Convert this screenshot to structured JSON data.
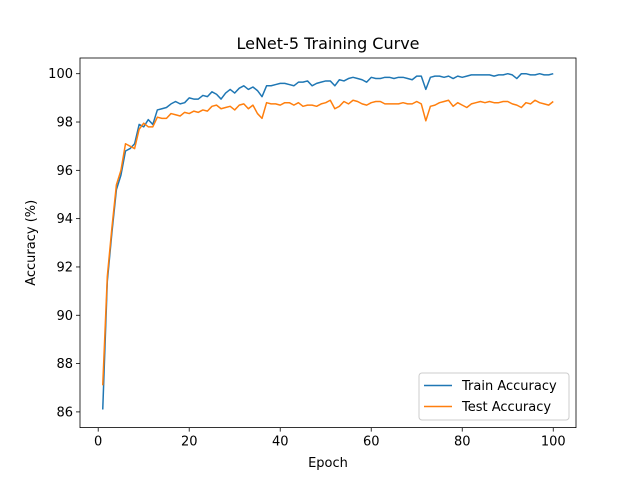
{
  "chart_data": {
    "type": "line",
    "title": "LeNet-5 Training Curve",
    "xlabel": "Epoch",
    "ylabel": "Accuracy (%)",
    "xlim": [
      -4,
      105
    ],
    "ylim": [
      85.35,
      100.65
    ],
    "x_ticks": [
      0,
      20,
      40,
      60,
      80,
      100
    ],
    "y_ticks": [
      86,
      88,
      90,
      92,
      94,
      96,
      98,
      100
    ],
    "grid": false,
    "legend_position": "lower-right",
    "x": [
      1,
      2,
      3,
      4,
      5,
      6,
      7,
      8,
      9,
      10,
      11,
      12,
      13,
      14,
      15,
      16,
      17,
      18,
      19,
      20,
      21,
      22,
      23,
      24,
      25,
      26,
      27,
      28,
      29,
      30,
      31,
      32,
      33,
      34,
      35,
      36,
      37,
      38,
      39,
      40,
      41,
      42,
      43,
      44,
      45,
      46,
      47,
      48,
      49,
      50,
      51,
      52,
      53,
      54,
      55,
      56,
      57,
      58,
      59,
      60,
      61,
      62,
      63,
      64,
      65,
      66,
      67,
      68,
      69,
      70,
      71,
      72,
      73,
      74,
      75,
      76,
      77,
      78,
      79,
      80,
      81,
      82,
      83,
      84,
      85,
      86,
      87,
      88,
      89,
      90,
      91,
      92,
      93,
      94,
      95,
      96,
      97,
      98,
      99,
      100
    ],
    "series": [
      {
        "name": "Train Accuracy",
        "color": "#1f77b4",
        "values": [
          86.1,
          91.4,
          93.4,
          95.2,
          95.8,
          96.8,
          96.9,
          97.1,
          97.9,
          97.8,
          98.1,
          97.9,
          98.5,
          98.55,
          98.6,
          98.75,
          98.85,
          98.75,
          98.8,
          99.0,
          98.95,
          98.95,
          99.1,
          99.05,
          99.25,
          99.15,
          98.95,
          99.2,
          99.35,
          99.2,
          99.4,
          99.5,
          99.35,
          99.45,
          99.3,
          99.05,
          99.5,
          99.5,
          99.55,
          99.6,
          99.6,
          99.55,
          99.5,
          99.65,
          99.65,
          99.7,
          99.5,
          99.6,
          99.65,
          99.7,
          99.7,
          99.5,
          99.75,
          99.7,
          99.8,
          99.85,
          99.8,
          99.75,
          99.65,
          99.85,
          99.8,
          99.8,
          99.85,
          99.85,
          99.8,
          99.85,
          99.85,
          99.8,
          99.75,
          99.9,
          99.9,
          99.35,
          99.85,
          99.9,
          99.9,
          99.85,
          99.9,
          99.8,
          99.9,
          99.85,
          99.9,
          99.95,
          99.95,
          99.95,
          99.95,
          99.95,
          99.9,
          99.95,
          99.95,
          100.0,
          99.95,
          99.8,
          100.0,
          100.0,
          99.95,
          99.95,
          100.0,
          99.95,
          99.95,
          100.0
        ]
      },
      {
        "name": "Test Accuracy",
        "color": "#ff7f0e",
        "values": [
          87.1,
          91.6,
          93.6,
          95.4,
          96.0,
          97.1,
          97.0,
          96.9,
          97.7,
          97.95,
          97.8,
          97.8,
          98.2,
          98.15,
          98.15,
          98.35,
          98.3,
          98.25,
          98.4,
          98.35,
          98.45,
          98.4,
          98.5,
          98.45,
          98.65,
          98.7,
          98.55,
          98.6,
          98.65,
          98.5,
          98.7,
          98.75,
          98.55,
          98.7,
          98.35,
          98.15,
          98.8,
          98.75,
          98.75,
          98.7,
          98.8,
          98.8,
          98.7,
          98.8,
          98.65,
          98.7,
          98.7,
          98.65,
          98.75,
          98.8,
          98.9,
          98.55,
          98.65,
          98.85,
          98.75,
          98.9,
          98.85,
          98.75,
          98.7,
          98.8,
          98.85,
          98.85,
          98.75,
          98.75,
          98.75,
          98.75,
          98.8,
          98.75,
          98.75,
          98.85,
          98.75,
          98.05,
          98.65,
          98.7,
          98.8,
          98.85,
          98.9,
          98.65,
          98.8,
          98.7,
          98.6,
          98.75,
          98.8,
          98.85,
          98.8,
          98.85,
          98.8,
          98.8,
          98.85,
          98.85,
          98.75,
          98.7,
          98.6,
          98.8,
          98.75,
          98.9,
          98.8,
          98.75,
          98.7,
          98.85
        ]
      }
    ]
  }
}
